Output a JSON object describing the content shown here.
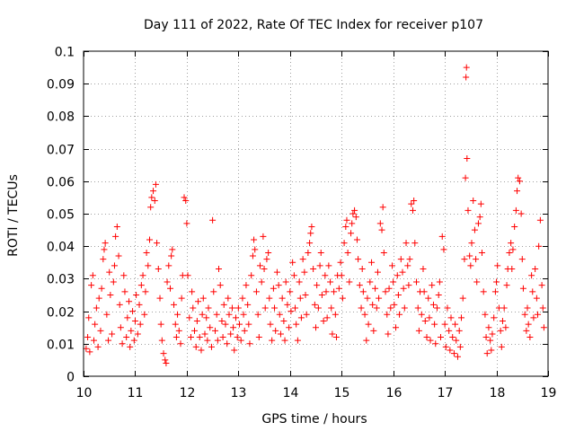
{
  "chart_data": {
    "type": "scatter",
    "title": "Day 111 of 2022, Rate Of TEC Index for receiver p107",
    "xlabel": "GPS time / hours",
    "ylabel": "ROTI / TECUs",
    "xlim": [
      10,
      19
    ],
    "ylim": [
      0,
      0.1
    ],
    "x_ticks": [
      "10",
      "11",
      "12",
      "13",
      "14",
      "15",
      "16",
      "17",
      "18",
      "19"
    ],
    "y_ticks": [
      "0",
      "0.01",
      "0.02",
      "0.03",
      "0.04",
      "0.05",
      "0.06",
      "0.07",
      "0.08",
      "0.09",
      "0.1"
    ],
    "grid": true,
    "marker": "+",
    "series_color": "#ff0000",
    "points": [
      [
        10.05,
        0.0085
      ],
      [
        10.08,
        0.012
      ],
      [
        10.1,
        0.018
      ],
      [
        10.12,
        0.0075
      ],
      [
        10.15,
        0.028
      ],
      [
        10.18,
        0.031
      ],
      [
        10.2,
        0.011
      ],
      [
        10.22,
        0.016
      ],
      [
        10.25,
        0.021
      ],
      [
        10.28,
        0.009
      ],
      [
        10.3,
        0.024
      ],
      [
        10.33,
        0.014
      ],
      [
        10.35,
        0.027
      ],
      [
        10.38,
        0.036
      ],
      [
        10.4,
        0.039
      ],
      [
        10.42,
        0.041
      ],
      [
        10.45,
        0.019
      ],
      [
        10.48,
        0.011
      ],
      [
        10.5,
        0.032
      ],
      [
        10.52,
        0.025
      ],
      [
        10.55,
        0.013
      ],
      [
        10.58,
        0.029
      ],
      [
        10.6,
        0.034
      ],
      [
        10.62,
        0.043
      ],
      [
        10.65,
        0.046
      ],
      [
        10.68,
        0.037
      ],
      [
        10.7,
        0.022
      ],
      [
        10.72,
        0.015
      ],
      [
        10.75,
        0.01
      ],
      [
        10.78,
        0.031
      ],
      [
        10.8,
        0.026
      ],
      [
        10.83,
        0.012
      ],
      [
        10.85,
        0.018
      ],
      [
        10.88,
        0.023
      ],
      [
        10.9,
        0.009
      ],
      [
        10.92,
        0.014
      ],
      [
        10.95,
        0.02
      ],
      [
        10.98,
        0.011
      ],
      [
        11.0,
        0.017
      ],
      [
        11.02,
        0.025
      ],
      [
        11.05,
        0.013
      ],
      [
        11.08,
        0.022
      ],
      [
        11.1,
        0.016
      ],
      [
        11.12,
        0.028
      ],
      [
        11.15,
        0.031
      ],
      [
        11.18,
        0.019
      ],
      [
        11.2,
        0.026
      ],
      [
        11.22,
        0.038
      ],
      [
        11.25,
        0.034
      ],
      [
        11.28,
        0.042
      ],
      [
        11.3,
        0.052
      ],
      [
        11.32,
        0.055
      ],
      [
        11.35,
        0.057
      ],
      [
        11.38,
        0.054
      ],
      [
        11.4,
        0.059
      ],
      [
        11.42,
        0.041
      ],
      [
        11.45,
        0.033
      ],
      [
        11.48,
        0.024
      ],
      [
        11.5,
        0.016
      ],
      [
        11.52,
        0.011
      ],
      [
        11.55,
        0.007
      ],
      [
        11.58,
        0.005
      ],
      [
        11.6,
        0.004
      ],
      [
        11.62,
        0.029
      ],
      [
        11.65,
        0.034
      ],
      [
        11.68,
        0.027
      ],
      [
        11.7,
        0.037
      ],
      [
        11.72,
        0.039
      ],
      [
        11.75,
        0.022
      ],
      [
        11.78,
        0.016
      ],
      [
        11.8,
        0.012
      ],
      [
        11.82,
        0.019
      ],
      [
        11.85,
        0.014
      ],
      [
        11.88,
        0.01
      ],
      [
        11.9,
        0.024
      ],
      [
        11.92,
        0.031
      ],
      [
        11.95,
        0.055
      ],
      [
        11.98,
        0.054
      ],
      [
        12.0,
        0.047
      ],
      [
        12.02,
        0.031
      ],
      [
        12.05,
        0.018
      ],
      [
        12.08,
        0.012
      ],
      [
        12.1,
        0.026
      ],
      [
        12.12,
        0.021
      ],
      [
        12.15,
        0.014
      ],
      [
        12.18,
        0.009
      ],
      [
        12.2,
        0.017
      ],
      [
        12.22,
        0.023
      ],
      [
        12.25,
        0.012
      ],
      [
        12.28,
        0.008
      ],
      [
        12.3,
        0.019
      ],
      [
        12.32,
        0.024
      ],
      [
        12.35,
        0.013
      ],
      [
        12.38,
        0.018
      ],
      [
        12.4,
        0.011
      ],
      [
        12.42,
        0.021
      ],
      [
        12.45,
        0.015
      ],
      [
        12.48,
        0.009
      ],
      [
        12.5,
        0.048
      ],
      [
        12.52,
        0.026
      ],
      [
        12.55,
        0.014
      ],
      [
        12.58,
        0.019
      ],
      [
        12.6,
        0.011
      ],
      [
        12.62,
        0.033
      ],
      [
        12.65,
        0.028
      ],
      [
        12.68,
        0.017
      ],
      [
        12.7,
        0.012
      ],
      [
        12.72,
        0.022
      ],
      [
        12.75,
        0.016
      ],
      [
        12.78,
        0.01
      ],
      [
        12.8,
        0.024
      ],
      [
        12.82,
        0.019
      ],
      [
        12.85,
        0.013
      ],
      [
        12.88,
        0.021
      ],
      [
        12.9,
        0.015
      ],
      [
        12.92,
        0.008
      ],
      [
        12.95,
        0.018
      ],
      [
        12.98,
        0.012
      ],
      [
        13.0,
        0.021
      ],
      [
        13.02,
        0.016
      ],
      [
        13.05,
        0.011
      ],
      [
        13.08,
        0.024
      ],
      [
        13.1,
        0.019
      ],
      [
        13.12,
        0.014
      ],
      [
        13.15,
        0.028
      ],
      [
        13.18,
        0.022
      ],
      [
        13.2,
        0.016
      ],
      [
        13.22,
        0.01
      ],
      [
        13.25,
        0.031
      ],
      [
        13.28,
        0.037
      ],
      [
        13.3,
        0.042
      ],
      [
        13.32,
        0.039
      ],
      [
        13.35,
        0.026
      ],
      [
        13.38,
        0.019
      ],
      [
        13.4,
        0.012
      ],
      [
        13.42,
        0.034
      ],
      [
        13.45,
        0.029
      ],
      [
        13.48,
        0.043
      ],
      [
        13.5,
        0.033
      ],
      [
        13.52,
        0.021
      ],
      [
        13.55,
        0.036
      ],
      [
        13.58,
        0.038
      ],
      [
        13.6,
        0.024
      ],
      [
        13.62,
        0.016
      ],
      [
        13.65,
        0.011
      ],
      [
        13.68,
        0.027
      ],
      [
        13.7,
        0.021
      ],
      [
        13.72,
        0.014
      ],
      [
        13.75,
        0.032
      ],
      [
        13.78,
        0.028
      ],
      [
        13.8,
        0.019
      ],
      [
        13.82,
        0.013
      ],
      [
        13.85,
        0.024
      ],
      [
        13.88,
        0.017
      ],
      [
        13.9,
        0.011
      ],
      [
        13.92,
        0.029
      ],
      [
        13.95,
        0.022
      ],
      [
        13.98,
        0.015
      ],
      [
        14.0,
        0.026
      ],
      [
        14.02,
        0.02
      ],
      [
        14.05,
        0.035
      ],
      [
        14.08,
        0.031
      ],
      [
        14.1,
        0.021
      ],
      [
        14.12,
        0.016
      ],
      [
        14.15,
        0.011
      ],
      [
        14.18,
        0.029
      ],
      [
        14.2,
        0.024
      ],
      [
        14.22,
        0.018
      ],
      [
        14.25,
        0.036
      ],
      [
        14.28,
        0.032
      ],
      [
        14.3,
        0.025
      ],
      [
        14.32,
        0.019
      ],
      [
        14.35,
        0.038
      ],
      [
        14.38,
        0.041
      ],
      [
        14.4,
        0.044
      ],
      [
        14.42,
        0.046
      ],
      [
        14.45,
        0.033
      ],
      [
        14.48,
        0.022
      ],
      [
        14.5,
        0.015
      ],
      [
        14.52,
        0.028
      ],
      [
        14.55,
        0.021
      ],
      [
        14.58,
        0.034
      ],
      [
        14.6,
        0.038
      ],
      [
        14.62,
        0.025
      ],
      [
        14.65,
        0.017
      ],
      [
        14.68,
        0.031
      ],
      [
        14.7,
        0.026
      ],
      [
        14.72,
        0.018
      ],
      [
        14.75,
        0.034
      ],
      [
        14.78,
        0.029
      ],
      [
        14.8,
        0.021
      ],
      [
        14.82,
        0.013
      ],
      [
        14.85,
        0.026
      ],
      [
        14.88,
        0.019
      ],
      [
        14.9,
        0.012
      ],
      [
        14.92,
        0.031
      ],
      [
        14.95,
        0.027
      ],
      [
        14.98,
        0.035
      ],
      [
        15.0,
        0.031
      ],
      [
        15.02,
        0.024
      ],
      [
        15.05,
        0.041
      ],
      [
        15.08,
        0.046
      ],
      [
        15.1,
        0.048
      ],
      [
        15.12,
        0.038
      ],
      [
        15.15,
        0.029
      ],
      [
        15.18,
        0.044
      ],
      [
        15.2,
        0.047
      ],
      [
        15.22,
        0.05
      ],
      [
        15.25,
        0.051
      ],
      [
        15.28,
        0.049
      ],
      [
        15.3,
        0.042
      ],
      [
        15.32,
        0.036
      ],
      [
        15.35,
        0.028
      ],
      [
        15.38,
        0.021
      ],
      [
        15.4,
        0.033
      ],
      [
        15.42,
        0.026
      ],
      [
        15.45,
        0.019
      ],
      [
        15.48,
        0.011
      ],
      [
        15.5,
        0.024
      ],
      [
        15.52,
        0.016
      ],
      [
        15.55,
        0.029
      ],
      [
        15.58,
        0.035
      ],
      [
        15.6,
        0.022
      ],
      [
        15.62,
        0.014
      ],
      [
        15.65,
        0.027
      ],
      [
        15.68,
        0.021
      ],
      [
        15.7,
        0.032
      ],
      [
        15.72,
        0.024
      ],
      [
        15.75,
        0.047
      ],
      [
        15.78,
        0.045
      ],
      [
        15.8,
        0.052
      ],
      [
        15.82,
        0.038
      ],
      [
        15.85,
        0.026
      ],
      [
        15.88,
        0.019
      ],
      [
        15.9,
        0.013
      ],
      [
        15.92,
        0.027
      ],
      [
        15.95,
        0.021
      ],
      [
        15.98,
        0.034
      ],
      [
        16.0,
        0.029
      ],
      [
        16.02,
        0.022
      ],
      [
        16.05,
        0.015
      ],
      [
        16.08,
        0.031
      ],
      [
        16.1,
        0.025
      ],
      [
        16.12,
        0.019
      ],
      [
        16.15,
        0.036
      ],
      [
        16.18,
        0.032
      ],
      [
        16.2,
        0.027
      ],
      [
        16.22,
        0.021
      ],
      [
        16.25,
        0.041
      ],
      [
        16.28,
        0.034
      ],
      [
        16.3,
        0.028
      ],
      [
        16.32,
        0.036
      ],
      [
        16.35,
        0.053
      ],
      [
        16.38,
        0.051
      ],
      [
        16.4,
        0.054
      ],
      [
        16.42,
        0.041
      ],
      [
        16.45,
        0.029
      ],
      [
        16.48,
        0.021
      ],
      [
        16.5,
        0.014
      ],
      [
        16.52,
        0.026
      ],
      [
        16.55,
        0.019
      ],
      [
        16.58,
        0.033
      ],
      [
        16.6,
        0.026
      ],
      [
        16.62,
        0.017
      ],
      [
        16.65,
        0.012
      ],
      [
        16.68,
        0.024
      ],
      [
        16.7,
        0.018
      ],
      [
        16.72,
        0.011
      ],
      [
        16.75,
        0.028
      ],
      [
        16.78,
        0.022
      ],
      [
        16.8,
        0.016
      ],
      [
        16.82,
        0.01
      ],
      [
        16.85,
        0.021
      ],
      [
        16.88,
        0.025
      ],
      [
        16.9,
        0.029
      ],
      [
        16.92,
        0.012
      ],
      [
        16.95,
        0.043
      ],
      [
        16.98,
        0.039
      ],
      [
        17.0,
        0.016
      ],
      [
        17.02,
        0.009
      ],
      [
        17.05,
        0.021
      ],
      [
        17.08,
        0.014
      ],
      [
        17.1,
        0.008
      ],
      [
        17.12,
        0.018
      ],
      [
        17.15,
        0.012
      ],
      [
        17.18,
        0.007
      ],
      [
        17.2,
        0.016
      ],
      [
        17.22,
        0.011
      ],
      [
        17.25,
        0.006
      ],
      [
        17.28,
        0.014
      ],
      [
        17.3,
        0.009
      ],
      [
        17.32,
        0.018
      ],
      [
        17.35,
        0.024
      ],
      [
        17.38,
        0.036
      ],
      [
        17.4,
        0.061
      ],
      [
        17.41,
        0.092
      ],
      [
        17.42,
        0.095
      ],
      [
        17.43,
        0.067
      ],
      [
        17.45,
        0.051
      ],
      [
        17.48,
        0.037
      ],
      [
        17.5,
        0.034
      ],
      [
        17.52,
        0.041
      ],
      [
        17.55,
        0.054
      ],
      [
        17.58,
        0.045
      ],
      [
        17.6,
        0.036
      ],
      [
        17.62,
        0.029
      ],
      [
        17.65,
        0.047
      ],
      [
        17.68,
        0.049
      ],
      [
        17.7,
        0.053
      ],
      [
        17.72,
        0.038
      ],
      [
        17.75,
        0.026
      ],
      [
        17.78,
        0.019
      ],
      [
        17.8,
        0.012
      ],
      [
        17.82,
        0.007
      ],
      [
        17.85,
        0.015
      ],
      [
        17.88,
        0.011
      ],
      [
        17.9,
        0.008
      ],
      [
        17.92,
        0.013
      ],
      [
        17.95,
        0.018
      ],
      [
        17.98,
        0.026
      ],
      [
        18.0,
        0.029
      ],
      [
        18.02,
        0.034
      ],
      [
        18.05,
        0.021
      ],
      [
        18.08,
        0.014
      ],
      [
        18.1,
        0.009
      ],
      [
        18.12,
        0.017
      ],
      [
        18.15,
        0.021
      ],
      [
        18.18,
        0.015
      ],
      [
        18.2,
        0.028
      ],
      [
        18.22,
        0.033
      ],
      [
        18.25,
        0.038
      ],
      [
        18.28,
        0.041
      ],
      [
        18.3,
        0.033
      ],
      [
        18.32,
        0.039
      ],
      [
        18.35,
        0.046
      ],
      [
        18.38,
        0.051
      ],
      [
        18.4,
        0.057
      ],
      [
        18.42,
        0.061
      ],
      [
        18.45,
        0.06
      ],
      [
        18.48,
        0.05
      ],
      [
        18.5,
        0.036
      ],
      [
        18.52,
        0.027
      ],
      [
        18.55,
        0.019
      ],
      [
        18.58,
        0.014
      ],
      [
        18.6,
        0.021
      ],
      [
        18.62,
        0.016
      ],
      [
        18.65,
        0.012
      ],
      [
        18.68,
        0.031
      ],
      [
        18.7,
        0.026
      ],
      [
        18.72,
        0.018
      ],
      [
        18.75,
        0.033
      ],
      [
        18.78,
        0.024
      ],
      [
        18.8,
        0.019
      ],
      [
        18.82,
        0.04
      ],
      [
        18.85,
        0.048
      ],
      [
        18.88,
        0.028
      ],
      [
        18.9,
        0.021
      ],
      [
        18.92,
        0.015
      ]
    ]
  }
}
